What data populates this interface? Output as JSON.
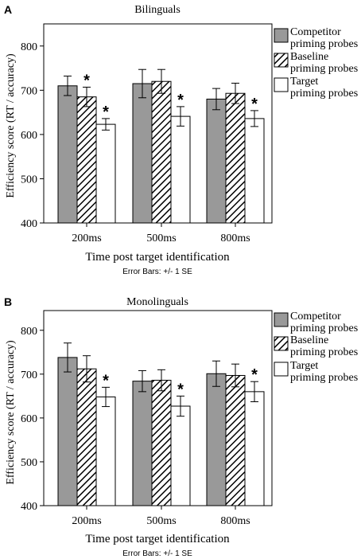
{
  "colors": {
    "competitor": "#999999",
    "baseline_bg": "#ffffff",
    "hatch": "#000000",
    "target": "#ffffff",
    "axis": "#000000"
  },
  "chart_data": [
    {
      "type": "bar",
      "panel_label": "A",
      "title": "Bilinguals",
      "xlabel": "Time post target identification",
      "ylabel": "Efficiency score (RT / accuracy)",
      "footnote": "Error Bars: +/- 1 SE",
      "categories": [
        "200ms",
        "500ms",
        "800ms"
      ],
      "ylim": [
        400,
        850
      ],
      "yticks": [
        "400",
        "500",
        "600",
        "700",
        "800"
      ],
      "legend_placement": "right",
      "series": [
        {
          "name": "Competitor priming probes",
          "fill": "gray",
          "values": [
            710,
            715,
            680
          ],
          "error": [
            22,
            32,
            24
          ]
        },
        {
          "name": "Baseline priming probes",
          "fill": "hatched",
          "values": [
            685,
            720,
            693
          ],
          "error": [
            22,
            27,
            23
          ]
        },
        {
          "name": "Target priming probes",
          "fill": "white",
          "values": [
            623,
            641,
            636
          ],
          "error": [
            13,
            22,
            18
          ]
        }
      ],
      "annotations": [
        {
          "series": 1,
          "category": 0,
          "text": "*"
        },
        {
          "series": 2,
          "category": 0,
          "text": "*"
        },
        {
          "series": 2,
          "category": 1,
          "text": "*"
        },
        {
          "series": 2,
          "category": 2,
          "text": "*"
        }
      ]
    },
    {
      "type": "bar",
      "panel_label": "B",
      "title": "Monolinguals",
      "xlabel": "Time post target identification",
      "ylabel": "Efficiency score (RT / accuracy)",
      "footnote": "Error Bars: +/- 1 SE",
      "categories": [
        "200ms",
        "500ms",
        "800ms"
      ],
      "ylim": [
        400,
        845
      ],
      "yticks": [
        "400",
        "500",
        "600",
        "700",
        "800"
      ],
      "legend_placement": "right",
      "series": [
        {
          "name": "Competitor priming probes",
          "fill": "gray",
          "values": [
            738,
            684,
            701
          ],
          "error": [
            33,
            24,
            29
          ]
        },
        {
          "name": "Baseline priming probes",
          "fill": "hatched",
          "values": [
            712,
            686,
            697
          ],
          "error": [
            30,
            24,
            26
          ]
        },
        {
          "name": "Target priming probes",
          "fill": "white",
          "values": [
            648,
            627,
            660
          ],
          "error": [
            22,
            23,
            23
          ]
        }
      ],
      "annotations": [
        {
          "series": 2,
          "category": 0,
          "text": "*"
        },
        {
          "series": 2,
          "category": 1,
          "text": "*"
        },
        {
          "series": 2,
          "category": 2,
          "text": "*"
        }
      ]
    }
  ]
}
